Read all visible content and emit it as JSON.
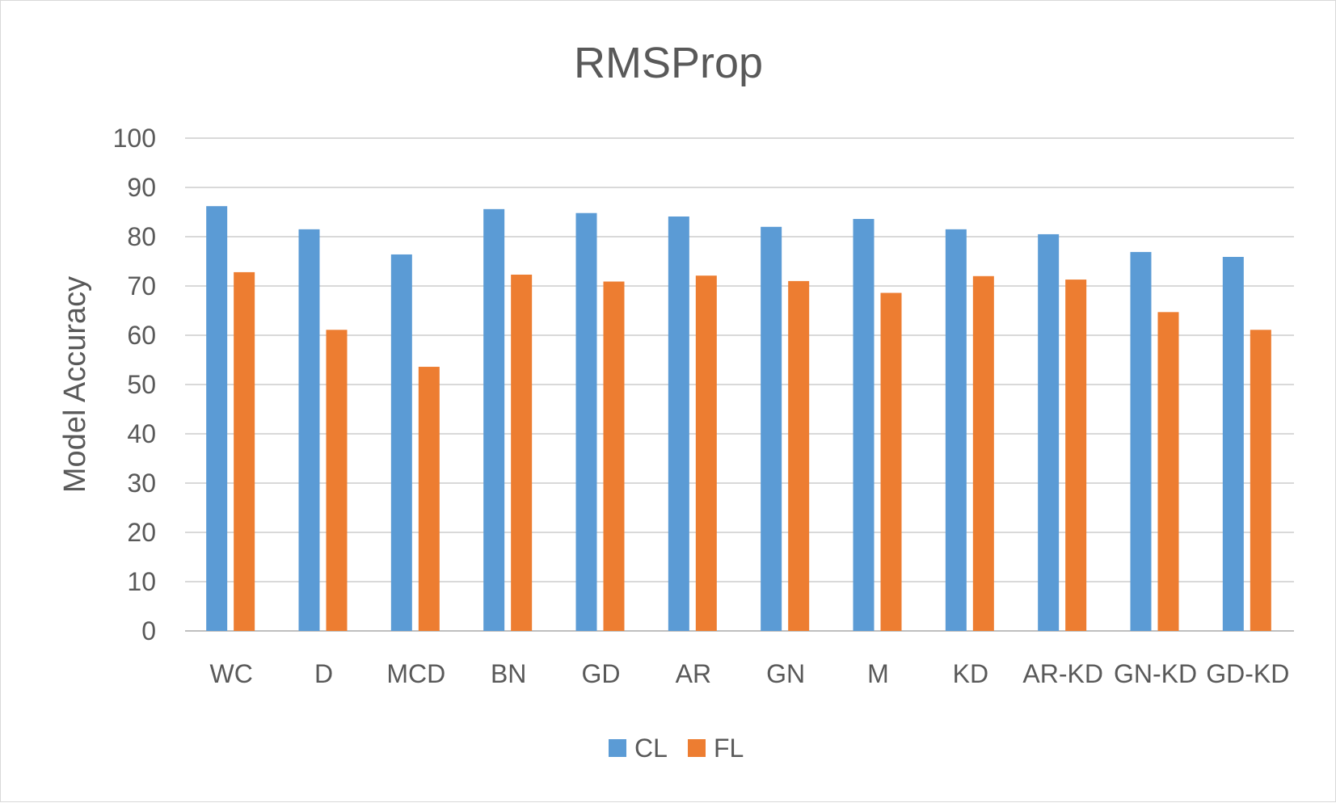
{
  "chart_data": {
    "type": "bar",
    "title": "RMSProp",
    "xlabel": "",
    "ylabel": "Model Accuracy",
    "ylim": [
      0,
      100
    ],
    "yticks": [
      0,
      10,
      20,
      30,
      40,
      50,
      60,
      70,
      80,
      90,
      100
    ],
    "grid": true,
    "legend_position": "bottom",
    "categories": [
      "WC",
      "D",
      "MCD",
      "BN",
      "GD",
      "AR",
      "GN",
      "M",
      "KD",
      "AR-KD",
      "GN-KD",
      "GD-KD"
    ],
    "series": [
      {
        "name": "CL",
        "color": "#5b9bd5",
        "values": [
          86.2,
          81.5,
          76.4,
          85.6,
          84.8,
          84.1,
          82.0,
          83.6,
          81.5,
          80.5,
          76.9,
          75.9
        ]
      },
      {
        "name": "FL",
        "color": "#ed7d31",
        "values": [
          72.8,
          61.1,
          53.6,
          72.3,
          70.9,
          72.1,
          71.0,
          68.6,
          72.0,
          71.3,
          64.7,
          61.1
        ]
      }
    ]
  }
}
